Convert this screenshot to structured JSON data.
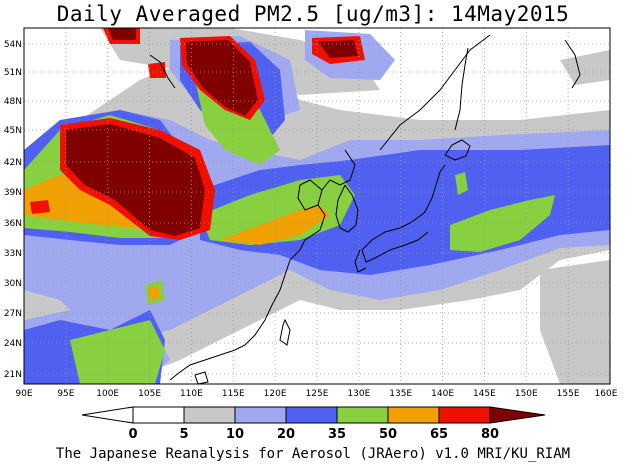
{
  "title": "Daily Averaged PM2.5 [ug/m3]: 14May2015",
  "footer": "The Japanese Reanalysis for Aerosol (JRAero) v1.0 MRI/KU_RIAM",
  "map": {
    "lon_range": [
      90,
      160
    ],
    "lat_range": [
      20,
      55
    ],
    "x_ticks": [
      "90E",
      "95E",
      "100E",
      "105E",
      "110E",
      "115E",
      "120E",
      "125E",
      "130E",
      "135E",
      "140E",
      "145E",
      "150E",
      "155E",
      "160E"
    ],
    "y_ticks": [
      "54N",
      "51N",
      "48N",
      "45N",
      "42N",
      "39N",
      "36N",
      "33N",
      "30N",
      "27N",
      "24N",
      "21N"
    ],
    "gridlines": true,
    "background_color": "#ffffff"
  },
  "colorbar": {
    "levels": [
      "0",
      "5",
      "10",
      "20",
      "35",
      "50",
      "65",
      "80"
    ],
    "colors": [
      "#ffffff",
      "#c8c8c8",
      "#a0a8f0",
      "#5060f0",
      "#88d040",
      "#f0a000",
      "#f01000",
      "#800000"
    ]
  }
}
